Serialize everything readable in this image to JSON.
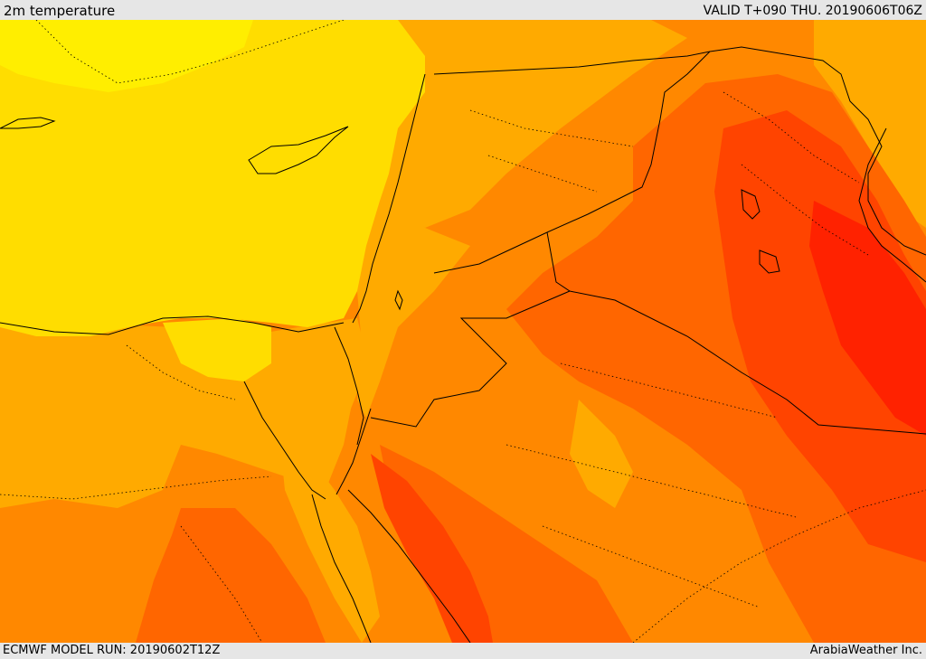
{
  "header": {
    "title": "2m temperature",
    "valid_time": "VALID T+090 THU. 20190606T06Z"
  },
  "footer": {
    "model_run": "ECMWF MODEL RUN: 20190602T12Z",
    "credit": "ArabiaWeather Inc."
  },
  "colors": {
    "sea_yellow": "#ffdd00",
    "light_yellow": "#ffee00",
    "amber": "#ffaa00",
    "orange": "#ff8800",
    "dark_orange": "#ff6600",
    "red_orange": "#ff4400",
    "red": "#ff2200",
    "border": "#000000"
  }
}
